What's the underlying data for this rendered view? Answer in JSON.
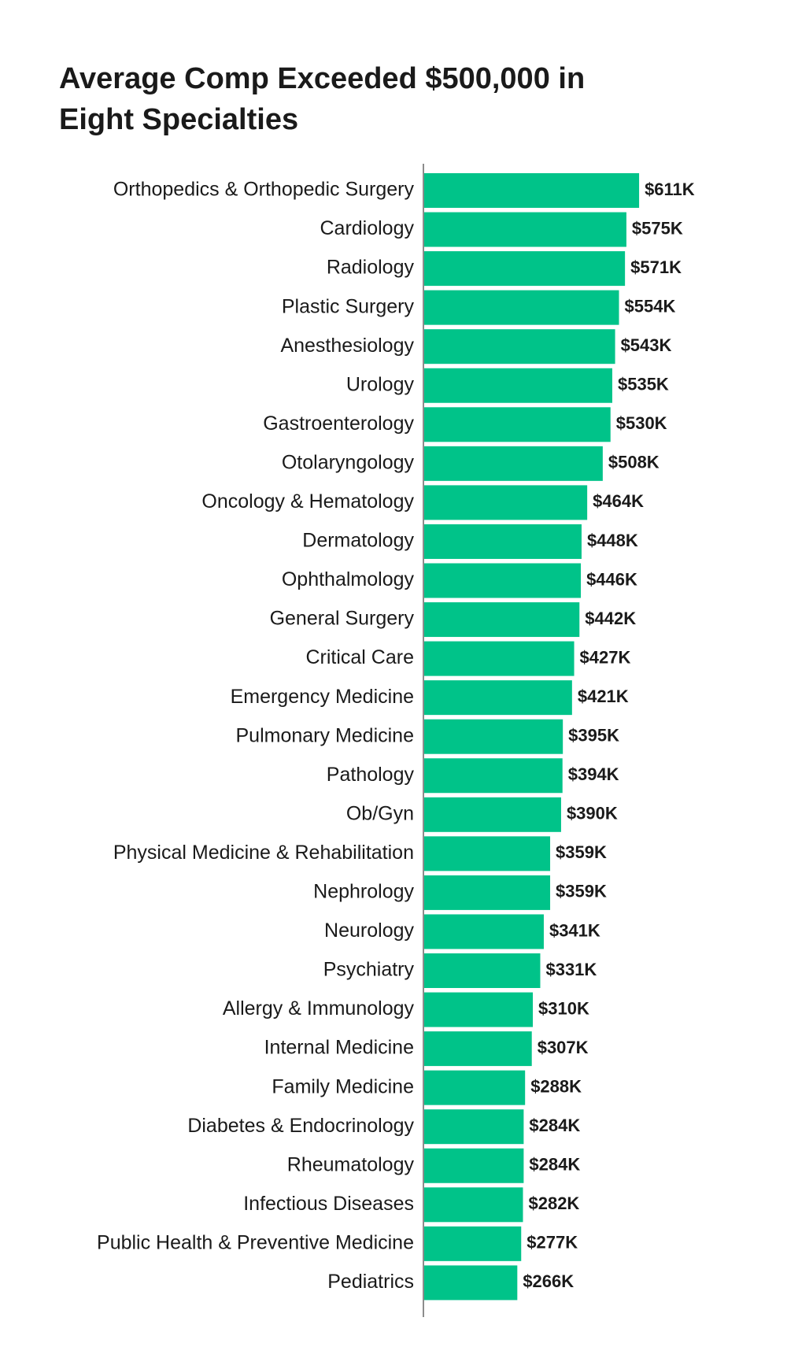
{
  "chart_data": {
    "type": "barh",
    "title": "Average Comp Exceeded $500,000 in Eight Specialties",
    "categories": [
      "Orthopedics & Orthopedic Surgery",
      "Cardiology",
      "Radiology",
      "Plastic Surgery",
      "Anesthesiology",
      "Urology",
      "Gastroenterology",
      "Otolaryngology",
      "Oncology & Hematology",
      "Dermatology",
      "Ophthalmology",
      "General Surgery",
      "Critical Care",
      "Emergency Medicine",
      "Pulmonary Medicine",
      "Pathology",
      "Ob/Gyn",
      "Physical Medicine & Rehabilitation",
      "Nephrology",
      "Neurology",
      "Psychiatry",
      "Allergy & Immunology",
      "Internal Medicine",
      "Family Medicine",
      "Diabetes & Endocrinology",
      "Rheumatology",
      "Infectious Diseases",
      "Public Health & Preventive Medicine",
      "Pediatrics"
    ],
    "values": [
      611000,
      575000,
      571000,
      554000,
      543000,
      535000,
      530000,
      508000,
      464000,
      448000,
      446000,
      442000,
      427000,
      421000,
      395000,
      394000,
      390000,
      359000,
      359000,
      341000,
      331000,
      310000,
      307000,
      288000,
      284000,
      284000,
      282000,
      277000,
      266000
    ],
    "value_labels": [
      "$611K",
      "$575K",
      "$571K",
      "$554K",
      "$543K",
      "$535K",
      "$530K",
      "$508K",
      "$464K",
      "$448K",
      "$446K",
      "$442K",
      "$427K",
      "$421K",
      "$395K",
      "$394K",
      "$390K",
      "$359K",
      "$359K",
      "$341K",
      "$331K",
      "$310K",
      "$307K",
      "$288K",
      "$284K",
      "$284K",
      "$282K",
      "$277K",
      "$266K"
    ],
    "color": "#00c389",
    "xlim": [
      0,
      700000
    ]
  }
}
